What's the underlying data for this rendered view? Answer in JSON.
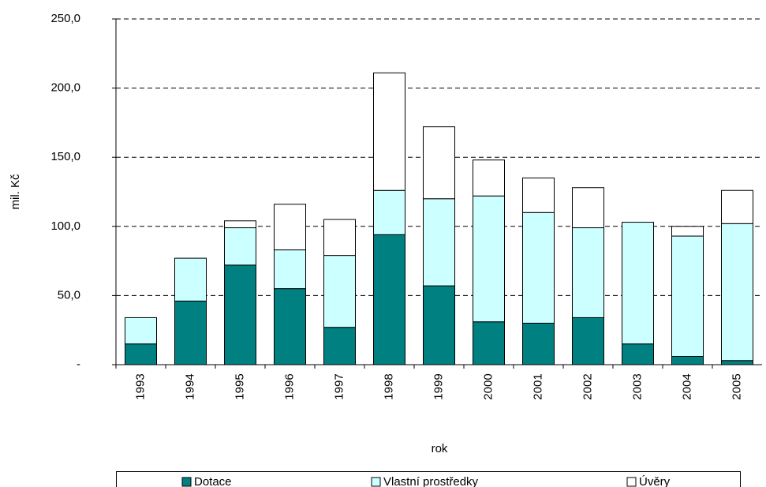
{
  "chart_data": {
    "type": "stacked-bar",
    "y_label": "mil. Kč",
    "x_label": "rok",
    "categories": [
      "1993",
      "1994",
      "1995",
      "1996",
      "1997",
      "1998",
      "1999",
      "2000",
      "2001",
      "2002",
      "2003",
      "2004",
      "2005"
    ],
    "series": [
      {
        "name": "Dotace",
        "color": "#008080",
        "values": [
          15,
          46,
          72,
          55,
          27,
          94,
          57,
          31,
          30,
          34,
          15,
          6,
          3
        ]
      },
      {
        "name": "Vlastní prostředky",
        "color": "#ccffff",
        "values": [
          19,
          31,
          27,
          28,
          52,
          32,
          63,
          91,
          80,
          65,
          88,
          87,
          99
        ]
      },
      {
        "name": "Úvěry",
        "color": "#ffffff",
        "values": [
          0,
          0,
          5,
          33,
          26,
          85,
          52,
          26,
          25,
          29,
          0,
          7,
          24
        ]
      }
    ],
    "ylim": [
      0,
      250
    ],
    "yticks": [
      {
        "value": 0,
        "label": "-"
      },
      {
        "value": 50,
        "label": "50,0"
      },
      {
        "value": 100,
        "label": "100,0"
      },
      {
        "value": 150,
        "label": "150,0"
      },
      {
        "value": 200,
        "label": "200,0"
      },
      {
        "value": 250,
        "label": "250,0"
      }
    ],
    "grid": true,
    "legend": "bottom"
  }
}
